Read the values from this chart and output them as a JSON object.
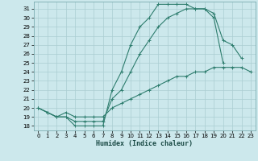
{
  "title": "",
  "xlabel": "Humidex (Indice chaleur)",
  "bg_color": "#cce8ec",
  "line_color": "#2e7d6e",
  "grid_color": "#aacdd2",
  "xlim": [
    -0.5,
    23.5
  ],
  "ylim": [
    17.5,
    31.8
  ],
  "xticks": [
    0,
    1,
    2,
    3,
    4,
    5,
    6,
    7,
    8,
    9,
    10,
    11,
    12,
    13,
    14,
    15,
    16,
    17,
    18,
    19,
    20,
    21,
    22,
    23
  ],
  "yticks": [
    18,
    19,
    20,
    21,
    22,
    23,
    24,
    25,
    26,
    27,
    28,
    29,
    30,
    31
  ],
  "curve1_x": [
    0,
    1,
    2,
    3,
    4,
    5,
    6,
    7,
    8,
    9,
    10,
    11,
    12,
    13,
    14,
    15,
    16,
    17,
    18,
    19,
    20
  ],
  "curve1_y": [
    20,
    19.5,
    19,
    19,
    18,
    18,
    18,
    18,
    22,
    24,
    27,
    29,
    30,
    31.5,
    31.5,
    31.5,
    31.5,
    31,
    31,
    30,
    25
  ],
  "curve2_x": [
    0,
    1,
    2,
    3,
    4,
    5,
    6,
    7,
    8,
    9,
    10,
    11,
    12,
    13,
    14,
    15,
    16,
    17,
    18,
    19,
    20,
    21,
    22
  ],
  "curve2_y": [
    20,
    19.5,
    19,
    19,
    18.5,
    18.5,
    18.5,
    18.5,
    21,
    22,
    24,
    26,
    27.5,
    29,
    30,
    30.5,
    31,
    31,
    31,
    30.5,
    27.5,
    27,
    25.5
  ],
  "curve3_x": [
    0,
    1,
    2,
    3,
    4,
    5,
    6,
    7,
    8,
    9,
    10,
    11,
    12,
    13,
    14,
    15,
    16,
    17,
    18,
    19,
    20,
    21,
    22,
    23
  ],
  "curve3_y": [
    20,
    19.5,
    19,
    19.5,
    19,
    19,
    19,
    19,
    20,
    20.5,
    21,
    21.5,
    22,
    22.5,
    23,
    23.5,
    23.5,
    24,
    24,
    24.5,
    24.5,
    24.5,
    24.5,
    24
  ]
}
